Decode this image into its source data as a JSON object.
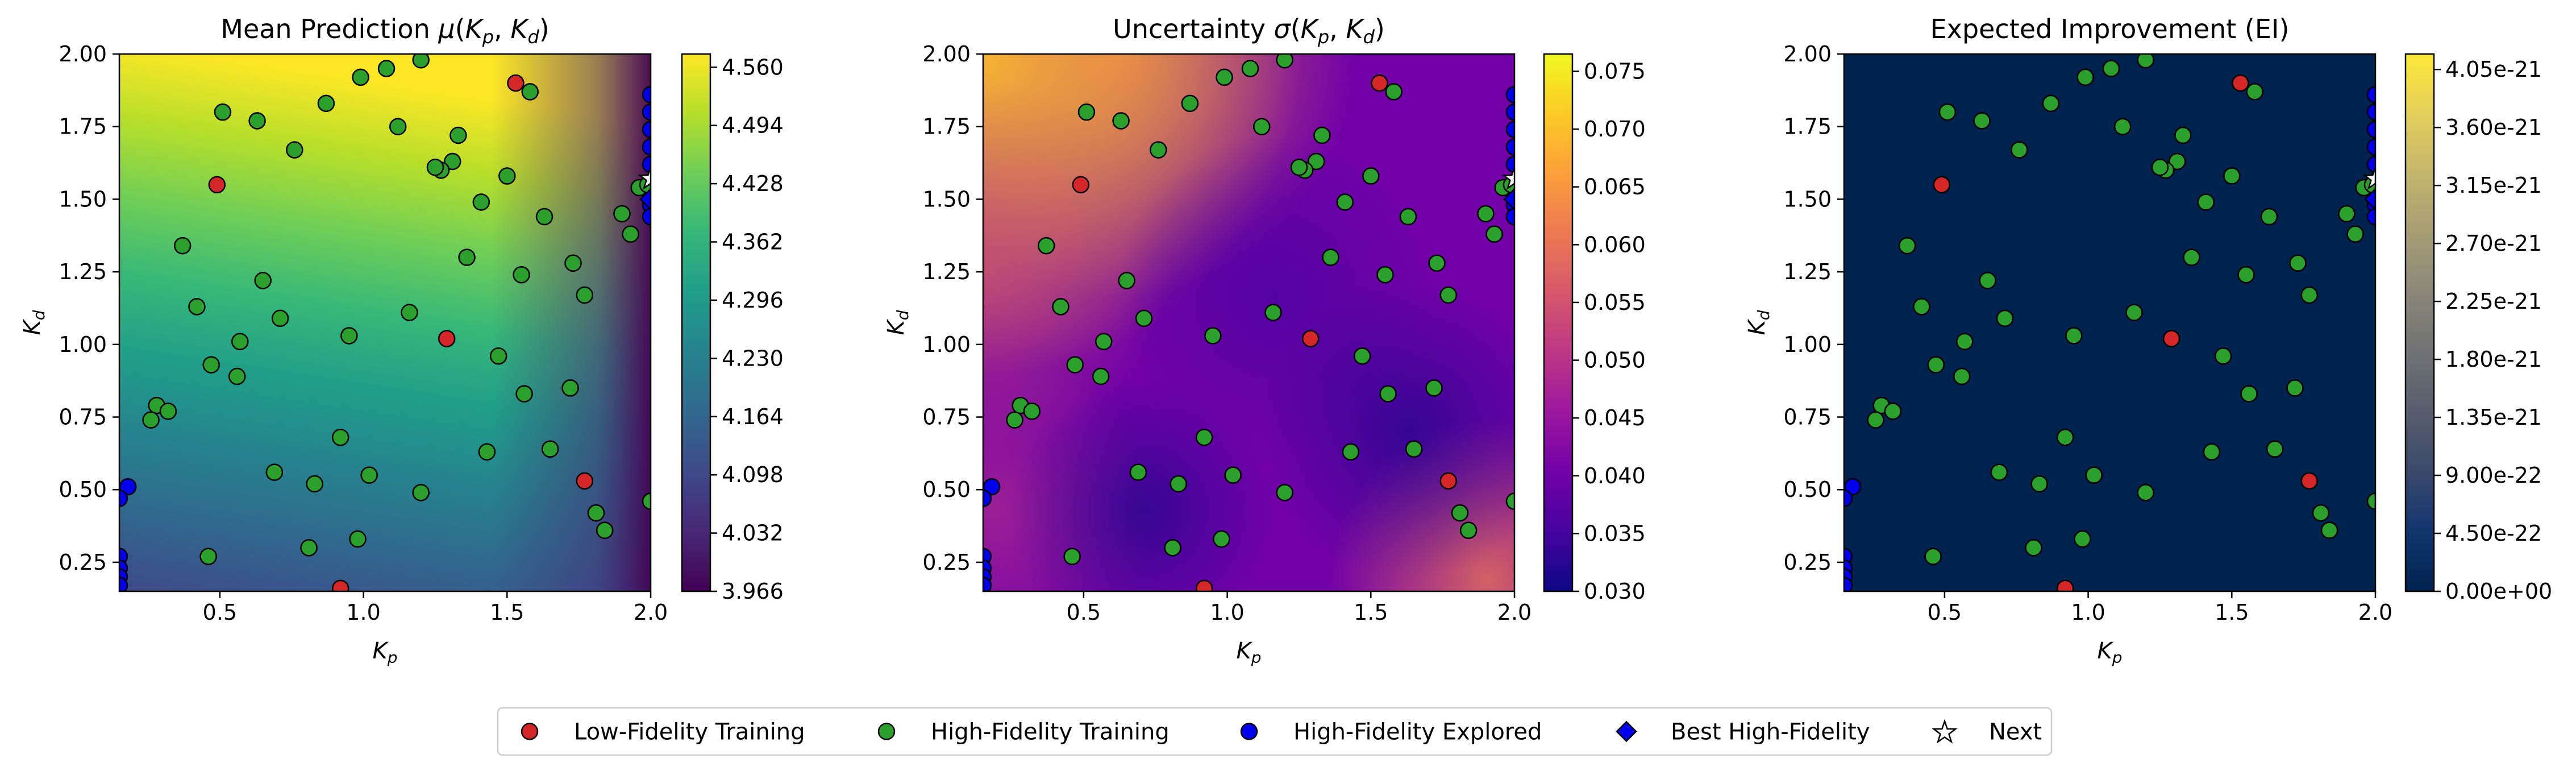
{
  "chart_data": [
    {
      "type": "heatmap",
      "title": "Mean Prediction μ(Kp, Kd)",
      "title_parts": {
        "prefix": "Mean Prediction ",
        "sym": "μ",
        "a": "K",
        "a_sub": "p",
        "b": "K",
        "b_sub": "d"
      },
      "xlabel": {
        "main": "K",
        "sub": "p"
      },
      "ylabel": {
        "main": "K",
        "sub": "d"
      },
      "xlim": [
        0.15,
        2.0
      ],
      "ylim": [
        0.15,
        2.0
      ],
      "xticks": [
        "0.5",
        "1.0",
        "1.5",
        "2.0"
      ],
      "yticks": [
        "0.25",
        "0.50",
        "0.75",
        "1.00",
        "1.25",
        "1.50",
        "1.75",
        "2.00"
      ],
      "colormap": "viridis",
      "colorbar_ticks": [
        "3.966",
        "4.032",
        "4.098",
        "4.164",
        "4.230",
        "4.296",
        "4.362",
        "4.428",
        "4.494",
        "4.560"
      ],
      "colorbar_range": [
        3.966,
        4.575
      ]
    },
    {
      "type": "heatmap",
      "title": "Uncertainty σ(Kp, Kd)",
      "title_parts": {
        "prefix": "Uncertainty ",
        "sym": "σ",
        "a": "K",
        "a_sub": "p",
        "b": "K",
        "b_sub": "d"
      },
      "xlabel": {
        "main": "K",
        "sub": "p"
      },
      "ylabel": {
        "main": "K",
        "sub": "d"
      },
      "xlim": [
        0.15,
        2.0
      ],
      "ylim": [
        0.15,
        2.0
      ],
      "xticks": [
        "0.5",
        "1.0",
        "1.5",
        "2.0"
      ],
      "yticks": [
        "0.25",
        "0.50",
        "0.75",
        "1.00",
        "1.25",
        "1.50",
        "1.75",
        "2.00"
      ],
      "colormap": "plasma",
      "colorbar_ticks": [
        "0.030",
        "0.035",
        "0.040",
        "0.045",
        "0.050",
        "0.055",
        "0.060",
        "0.065",
        "0.070",
        "0.075"
      ],
      "colorbar_range": [
        0.03,
        0.0765
      ]
    },
    {
      "type": "heatmap",
      "title": "Expected Improvement (EI)",
      "title_parts": {
        "prefix": "Expected Improvement (EI)"
      },
      "xlabel": {
        "main": "K",
        "sub": "p"
      },
      "ylabel": {
        "main": "K",
        "sub": "d"
      },
      "xlim": [
        0.15,
        2.0
      ],
      "ylim": [
        0.15,
        2.0
      ],
      "xticks": [
        "0.5",
        "1.0",
        "1.5",
        "2.0"
      ],
      "yticks": [
        "0.25",
        "0.50",
        "0.75",
        "1.00",
        "1.25",
        "1.50",
        "1.75",
        "2.00"
      ],
      "colormap": "cividis",
      "colorbar_ticks": [
        "0.00e+00",
        "4.50e-22",
        "9.00e-22",
        "1.35e-21",
        "1.80e-21",
        "2.25e-21",
        "2.70e-21",
        "3.15e-21",
        "3.60e-21",
        "4.05e-21"
      ],
      "colorbar_range": [
        0,
        4.17e-21
      ]
    }
  ],
  "points": {
    "low_fidelity": [
      [
        0.49,
        1.55
      ],
      [
        1.53,
        1.9
      ],
      [
        1.29,
        1.02
      ],
      [
        1.77,
        0.53
      ],
      [
        0.92,
        0.16
      ]
    ],
    "high_fidelity": [
      [
        0.51,
        1.8
      ],
      [
        0.63,
        1.77
      ],
      [
        0.76,
        1.67
      ],
      [
        0.87,
        1.83
      ],
      [
        0.99,
        1.92
      ],
      [
        1.08,
        1.95
      ],
      [
        1.2,
        1.98
      ],
      [
        1.58,
        1.87
      ],
      [
        1.12,
        1.75
      ],
      [
        1.33,
        1.72
      ],
      [
        1.31,
        1.63
      ],
      [
        1.27,
        1.6
      ],
      [
        1.25,
        1.61
      ],
      [
        1.5,
        1.58
      ],
      [
        1.41,
        1.49
      ],
      [
        1.63,
        1.44
      ],
      [
        1.93,
        1.38
      ],
      [
        1.9,
        1.45
      ],
      [
        1.96,
        1.54
      ],
      [
        1.99,
        1.55
      ],
      [
        0.37,
        1.34
      ],
      [
        1.36,
        1.3
      ],
      [
        1.73,
        1.28
      ],
      [
        1.55,
        1.24
      ],
      [
        0.65,
        1.22
      ],
      [
        1.77,
        1.17
      ],
      [
        0.42,
        1.13
      ],
      [
        1.16,
        1.11
      ],
      [
        0.71,
        1.09
      ],
      [
        0.95,
        1.03
      ],
      [
        0.57,
        1.01
      ],
      [
        1.47,
        0.96
      ],
      [
        0.47,
        0.93
      ],
      [
        0.56,
        0.89
      ],
      [
        1.56,
        0.83
      ],
      [
        1.72,
        0.85
      ],
      [
        0.28,
        0.79
      ],
      [
        0.32,
        0.77
      ],
      [
        0.26,
        0.74
      ],
      [
        0.92,
        0.68
      ],
      [
        1.43,
        0.63
      ],
      [
        1.65,
        0.64
      ],
      [
        0.69,
        0.56
      ],
      [
        1.02,
        0.55
      ],
      [
        0.83,
        0.52
      ],
      [
        1.2,
        0.49
      ],
      [
        1.81,
        0.42
      ],
      [
        1.84,
        0.36
      ],
      [
        0.46,
        0.27
      ],
      [
        0.81,
        0.3
      ],
      [
        0.98,
        0.33
      ],
      [
        2.0,
        0.46
      ]
    ],
    "hf_explored": [
      [
        0.18,
        0.51
      ],
      [
        0.15,
        0.47
      ],
      [
        0.15,
        0.27
      ],
      [
        0.15,
        0.23
      ],
      [
        0.15,
        0.2
      ],
      [
        0.15,
        0.17
      ],
      [
        2.0,
        1.86
      ],
      [
        2.0,
        1.8
      ],
      [
        2.0,
        1.74
      ],
      [
        2.0,
        1.68
      ],
      [
        2.0,
        1.62
      ],
      [
        2.0,
        1.56
      ],
      [
        2.0,
        1.51
      ],
      [
        2.0,
        1.48
      ],
      [
        2.0,
        1.44
      ]
    ],
    "best_hf": [
      2.0,
      1.5
    ],
    "next": [
      2.0,
      1.57
    ]
  },
  "legend": {
    "items": [
      {
        "label": "Low-Fidelity Training",
        "color": "#d62728"
      },
      {
        "label": "High-Fidelity Training",
        "color": "#2ca02c"
      },
      {
        "label": "High-Fidelity Explored",
        "color": "#0000ee"
      },
      {
        "label": "Best High-Fidelity",
        "color": "#0000ee"
      },
      {
        "label": "Next",
        "color": "#ffffff"
      }
    ]
  }
}
